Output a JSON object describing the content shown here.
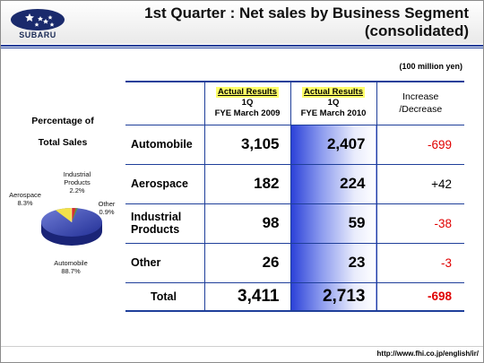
{
  "brand": {
    "logo_text": "SUBARU"
  },
  "title": {
    "line1": "1st Quarter : Net sales by Business Segment",
    "line2": "(consolidated)"
  },
  "unit_note": "(100 million yen)",
  "sidebar": {
    "heading_line1": "Percentage of",
    "heading_line2": "Total Sales",
    "pie_labels": {
      "industrial": {
        "name_line1": "Industrial",
        "name_line2": "Products",
        "pct": "2.2%"
      },
      "aerospace": {
        "name": "Aerospace",
        "pct": "8.3%"
      },
      "other": {
        "name": "Other",
        "pct": "0.9%"
      },
      "automobile": {
        "name": "Automobile",
        "pct": "88.7%"
      }
    }
  },
  "table": {
    "col_fy09": {
      "line1": "Actual Results",
      "line2": "1Q",
      "line3": "FYE March 2009"
    },
    "col_fy10": {
      "line1": "Actual Results",
      "line2": "1Q",
      "line3": "FYE March 2010"
    },
    "col_change": {
      "line1": "Increase",
      "line2": "/Decrease"
    },
    "rows": [
      {
        "label": "Automobile",
        "fy09": "3,105",
        "fy10": "2,407",
        "change": "-699"
      },
      {
        "label": "Aerospace",
        "fy09": "182",
        "fy10": "224",
        "change": "+42"
      },
      {
        "label_line1": "Industrial",
        "label_line2": "Products",
        "fy09": "98",
        "fy10": "59",
        "change": "-38"
      },
      {
        "label": "Other",
        "fy09": "26",
        "fy10": "23",
        "change": "-3"
      }
    ],
    "total": {
      "label": "Total",
      "fy09": "3,411",
      "fy10": "2,713",
      "change": "-698"
    }
  },
  "colors": {
    "accent_blue": "#1f3f9a",
    "negative_red": "#e00000",
    "highlight_yellow": "#ffff66",
    "pie_blue": "#2c3aa8"
  },
  "footer": {
    "url": "http://www.fhi.co.jp/english/ir/"
  }
}
